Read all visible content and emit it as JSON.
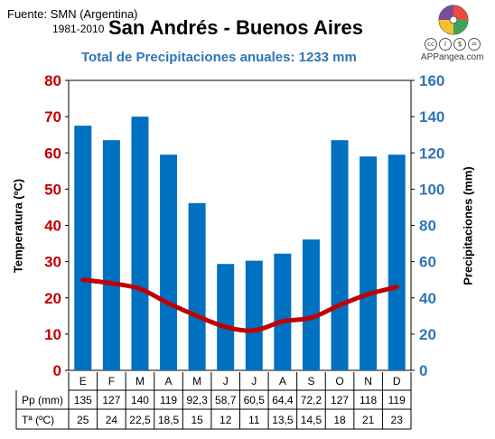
{
  "header": {
    "source": "Fuente: SMN (Argentina)",
    "period": "1981-2010",
    "site": "APPangea.com"
  },
  "license_icons": [
    "cc",
    "i",
    "$",
    "="
  ],
  "table": {
    "pp_label": "Pp (mm)",
    "temp_label": "Tª (ºC)",
    "pp_values": [
      "135",
      "127",
      "140",
      "119",
      "92,3",
      "58,7",
      "60,5",
      "64,4",
      "72,2",
      "127",
      "118",
      "119"
    ],
    "temp_values": [
      "25",
      "24",
      "22,5",
      "18,5",
      "15",
      "12",
      "11",
      "13,5",
      "14,5",
      "18",
      "21",
      "23"
    ]
  },
  "colors": {
    "bars": "#0070c0",
    "line": "#c00000",
    "left_axis": "#c00000",
    "right_axis": "#2e75b6",
    "subtitle": "#2e75b6"
  },
  "chart_data": {
    "type": "bar",
    "title": "San Andrés - Buenos Aires",
    "subtitle": "Total de Precipitaciones anuales: 1233 mm",
    "categories": [
      "E",
      "F",
      "M",
      "A",
      "M",
      "J",
      "J",
      "A",
      "S",
      "O",
      "N",
      "D"
    ],
    "series": [
      {
        "name": "Pp (mm)",
        "type": "bar",
        "axis": "right",
        "values": [
          135,
          127,
          140,
          119,
          92.3,
          58.7,
          60.5,
          64.4,
          72.2,
          127,
          118,
          119
        ]
      },
      {
        "name": "Tª (ºC)",
        "type": "line",
        "axis": "left",
        "values": [
          25,
          24,
          22.5,
          18.5,
          15,
          12,
          11,
          13.5,
          14.5,
          18,
          21,
          23
        ]
      }
    ],
    "ylabel_left": "Temperatura (ºC)",
    "ylabel_right": "Precipitaciones (mm)",
    "ylim_left": [
      0,
      80
    ],
    "ylim_right": [
      0,
      160
    ],
    "yticks_left": [
      "0",
      "10",
      "20",
      "30",
      "40",
      "50",
      "60",
      "70",
      "80"
    ],
    "yticks_right": [
      "0",
      "20",
      "40",
      "60",
      "80",
      "100",
      "120",
      "140",
      "160"
    ],
    "grid": false
  }
}
